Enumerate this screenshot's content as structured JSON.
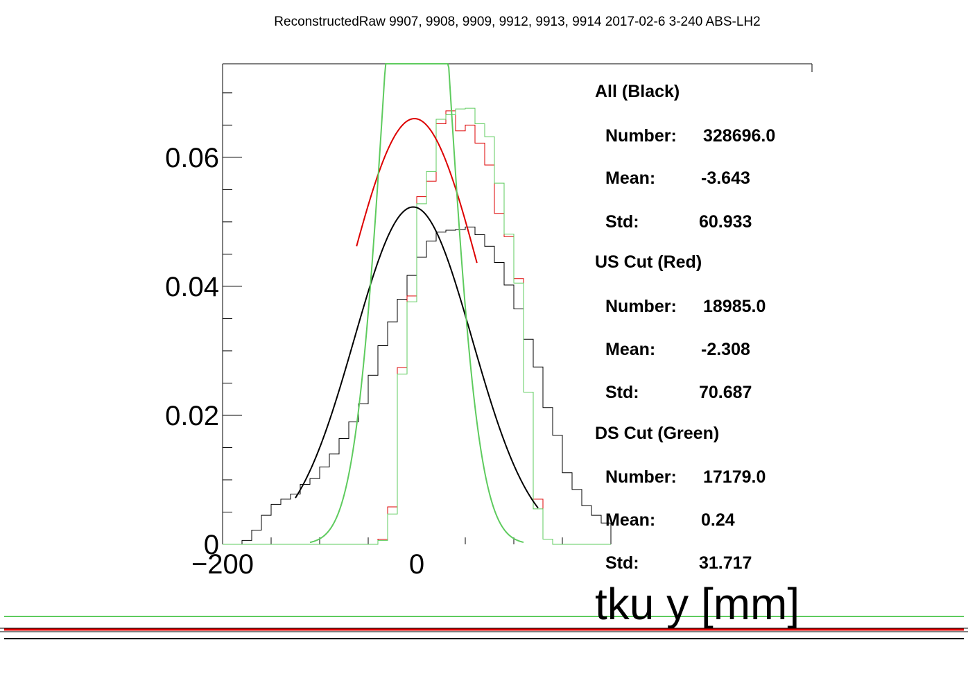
{
  "title": "ReconstructedRaw 9907, 9908, 9909, 9912, 9913, 9914 2017-02-6 3-240 ABS-LH2",
  "colors": {
    "all": "#000000",
    "us": "#dd0000",
    "ds": "#5ecb5e",
    "frame": "#000000"
  },
  "chart_data": {
    "type": "line",
    "xlabel": "tku y [mm]",
    "ylabel": "",
    "xlim": [
      -200,
      200
    ],
    "ylim": [
      0,
      0.0745
    ],
    "x_ticks": [
      -200,
      0
    ],
    "x_tick_labels": [
      "−200",
      "0"
    ],
    "y_ticks": [
      0,
      0.02,
      0.04,
      0.06
    ],
    "y_tick_labels": [
      "0",
      "0.02",
      "0.04",
      "0.06"
    ],
    "bin_width": 10,
    "bin_centers": [
      -195,
      -185,
      -175,
      -165,
      -155,
      -145,
      -135,
      -125,
      -115,
      -105,
      -95,
      -85,
      -75,
      -65,
      -55,
      -45,
      -35,
      -25,
      -15,
      -5,
      5,
      15,
      25,
      35,
      45,
      55,
      65,
      75,
      85,
      95,
      105,
      115,
      125,
      135,
      145,
      155,
      165,
      175,
      185,
      195
    ],
    "series": [
      {
        "key": "all",
        "values": [
          0,
          0,
          0.0006,
          0.0022,
          0.0045,
          0.0062,
          0.007,
          0.0078,
          0.0093,
          0.0102,
          0.012,
          0.014,
          0.0164,
          0.019,
          0.0218,
          0.0262,
          0.0308,
          0.0345,
          0.038,
          0.0417,
          0.0445,
          0.047,
          0.0484,
          0.0487,
          0.0488,
          0.0492,
          0.048,
          0.0462,
          0.0437,
          0.0402,
          0.0365,
          0.0318,
          0.0275,
          0.0212,
          0.0169,
          0.0111,
          0.0085,
          0.006,
          0.0045,
          0.0033
        ],
        "fit": {
          "mean": -3.643,
          "sigma": 60.933,
          "amplitude": 0.0523,
          "range": [
            -125,
            125
          ]
        }
      },
      {
        "key": "us",
        "values": [
          0,
          0,
          0,
          0,
          0,
          0,
          0,
          0,
          0,
          0,
          0,
          0,
          0,
          0,
          0,
          0,
          0.0008,
          0.0058,
          0.0274,
          0.0385,
          0.0539,
          0.0563,
          0.0652,
          0.0672,
          0.0641,
          0.065,
          0.0622,
          0.0588,
          0.0513,
          0.0477,
          0.0412,
          0.0236,
          0.007,
          0.0008,
          0,
          0,
          0,
          0,
          0,
          0
        ],
        "fit": {
          "mean": -2.308,
          "sigma": 70.687,
          "amplitude": 0.066,
          "range": [
            -62,
            62
          ]
        }
      },
      {
        "key": "ds",
        "values": [
          0,
          0,
          0,
          0,
          0,
          0,
          0,
          0,
          0,
          0,
          0,
          0,
          0,
          0,
          0,
          0,
          0.0006,
          0.0047,
          0.0264,
          0.0376,
          0.0528,
          0.0578,
          0.0659,
          0.0666,
          0.0675,
          0.0676,
          0.0652,
          0.0632,
          0.056,
          0.0481,
          0.0405,
          0.0236,
          0.0055,
          0.0008,
          0,
          0,
          0,
          0,
          0,
          0
        ],
        "fit": {
          "mean": 0.24,
          "sigma": 31.717,
          "amplitude": 0.126,
          "range": [
            -110,
            110
          ]
        }
      }
    ]
  },
  "stats": [
    {
      "key": "all",
      "header": "All (Black)",
      "rows": [
        {
          "label": "Number:",
          "value": "328696.0"
        },
        {
          "label": "Mean:",
          "value": "-3.643"
        },
        {
          "label": "Std:",
          "value": "60.933"
        }
      ]
    },
    {
      "key": "us",
      "header": "US Cut (Red)",
      "rows": [
        {
          "label": "Number:",
          "value": "18985.0"
        },
        {
          "label": "Mean:",
          "value": "-2.308"
        },
        {
          "label": "Std:",
          "value": "70.687"
        }
      ]
    },
    {
      "key": "ds",
      "header": "DS Cut (Green)",
      "rows": [
        {
          "label": "Number:",
          "value": "17179.0"
        },
        {
          "label": "Mean:",
          "value": "0.24"
        },
        {
          "label": "Std:",
          "value": "31.717"
        }
      ]
    }
  ]
}
